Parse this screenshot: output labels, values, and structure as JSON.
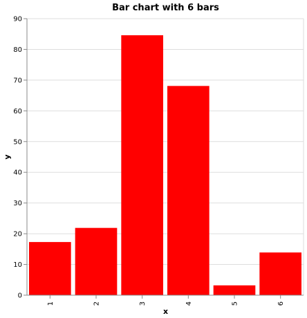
{
  "chart_data": {
    "type": "bar",
    "title": "Bar chart with 6 bars",
    "xlabel": "x",
    "ylabel": "y",
    "categories": [
      "1",
      "2",
      "3",
      "4",
      "5",
      "6"
    ],
    "values": [
      17.3,
      21.9,
      84.6,
      68.1,
      3.2,
      13.9
    ],
    "ylim": [
      0,
      90
    ],
    "yticks": [
      0,
      10,
      20,
      30,
      40,
      50,
      60,
      70,
      80,
      90
    ],
    "grid": true,
    "bar_color": "#ff0000",
    "grid_color": "#dddddd",
    "axis_color": "#888888"
  }
}
